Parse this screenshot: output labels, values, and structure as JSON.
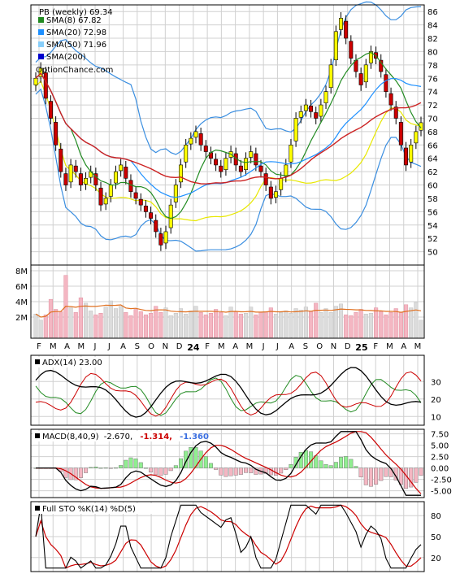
{
  "chart_data": [
    {
      "type": "candlestick",
      "title": "PB (weekly) 69.34",
      "watermark": "OptionChance.com",
      "ylim": [
        48,
        87
      ],
      "y_ticks": [
        52,
        54,
        56,
        58,
        60,
        62,
        64,
        66,
        68,
        70,
        72,
        74,
        76,
        78,
        80,
        82,
        84,
        86
      ],
      "y_ticks_extra": [
        50
      ],
      "x_ticks": [
        "F",
        "M",
        "A",
        "M",
        "J",
        "J",
        "A",
        "S",
        "O",
        "N",
        "D",
        "24",
        "F",
        "M",
        "A",
        "M",
        "J",
        "J",
        "A",
        "S",
        "O",
        "N",
        "D",
        "25",
        "F",
        "M",
        "A",
        "M"
      ],
      "bold_ticks": [
        "24",
        "25"
      ],
      "legend": [
        {
          "label": "SMA(8) 67.82",
          "color": "#228b22"
        },
        {
          "label": "SMA(20) 72.98",
          "color": "#1e90ff"
        },
        {
          "label": "SMA(50) 71.96",
          "color": "#87cefa"
        },
        {
          "label": "SMA(200)",
          "color": "#0000cd"
        }
      ],
      "colors": {
        "up": "#ffff00",
        "down": "#cc0000",
        "bb": "#3a8ee0",
        "sma8": "#228b22",
        "sma20": "#1e90ff",
        "long": "#cc2222",
        "low_band": "#e8e800"
      },
      "closes": [
        76,
        77.5,
        73,
        70,
        66,
        62,
        60,
        63,
        62,
        60,
        61,
        62,
        60,
        57,
        58,
        60,
        62,
        63,
        61,
        59,
        58,
        57,
        56,
        55,
        53,
        51,
        53,
        57,
        60,
        63,
        66,
        67,
        68,
        66,
        65,
        64,
        63,
        62,
        64,
        65,
        63,
        62,
        64,
        65,
        63,
        62,
        60,
        58,
        59,
        61,
        63,
        66,
        70,
        71,
        72,
        71,
        70,
        72,
        74,
        78,
        83,
        85,
        82,
        79,
        77,
        75,
        78,
        80,
        79,
        77,
        74,
        72,
        70,
        66,
        63,
        66,
        68,
        69.34
      ]
    },
    {
      "type": "bar",
      "title": "Volume",
      "y_ticks": [
        "2M",
        "4M",
        "6M",
        "8M"
      ],
      "volume_M": [
        2.4,
        1.6,
        2.3,
        4.3,
        3.0,
        2.7,
        7.4,
        3.2,
        2.6,
        4.5,
        3.8,
        2.8,
        2.3,
        2.5,
        3.3,
        4.1,
        3.1,
        3.4,
        2.6,
        2.2,
        3.0,
        2.7,
        2.3,
        2.5,
        3.4,
        2.6,
        3.2,
        2.2,
        2.5,
        3.1,
        2.4,
        2.8,
        3.4,
        2.6,
        2.3,
        2.5,
        3.0,
        2.6,
        2.2,
        3.3,
        2.7,
        2.4,
        2.5,
        3.3,
        2.3,
        2.6,
        2.7,
        3.2,
        2.4,
        2.6,
        2.8,
        2.5,
        3.1,
        2.9,
        3.3,
        2.7,
        3.8,
        2.6,
        3.1,
        2.6,
        3.4,
        3.7,
        2.3,
        2.2,
        2.6,
        3.0,
        2.4,
        2.5,
        3.2,
        2.7,
        2.3,
        2.6,
        3.1,
        2.6,
        3.6,
        3.2,
        3.9,
        1.6
      ]
    },
    {
      "type": "line",
      "title": "ADX(14) 23.00",
      "ylim": [
        5,
        45
      ],
      "y_ticks": [
        10,
        20,
        30
      ],
      "series": [
        {
          "name": "ADX(14) 23.00",
          "color": "#000000"
        },
        {
          "name": "+DI",
          "color": "#228b22"
        },
        {
          "name": "-DI",
          "color": "#cc0000"
        }
      ]
    },
    {
      "type": "line",
      "title": "MACD(8,40,9)",
      "values_text": [
        "-2.670,",
        "-1.314,",
        "-1.360"
      ],
      "ylim": [
        -6.5,
        8.5
      ],
      "y_ticks": [
        "7.50",
        "5.00",
        "2.50",
        "0.00",
        "-2.50",
        "-5.00"
      ],
      "series": [
        {
          "name": "MACD",
          "color": "#000000"
        },
        {
          "name": "Signal",
          "color": "#cc0000"
        },
        {
          "name": "Histogram",
          "color": "#90ee90"
        }
      ]
    },
    {
      "type": "line",
      "title": "Full STO %K(14) %D(5)",
      "ylim": [
        0,
        100
      ],
      "y_ticks": [
        20,
        50,
        80
      ],
      "series": [
        {
          "name": "%K(14)",
          "color": "#000000"
        },
        {
          "name": "%D(5)",
          "color": "#cc0000"
        }
      ]
    }
  ]
}
